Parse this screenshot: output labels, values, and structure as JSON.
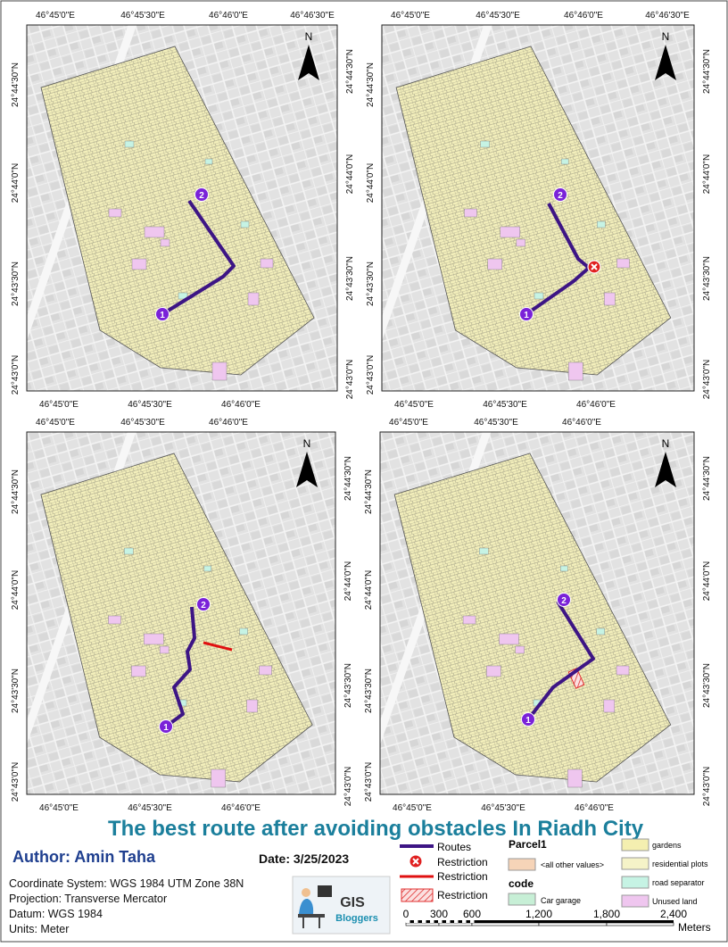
{
  "panels": [
    {
      "top": [
        "46°45'0\"E",
        "46°45'30\"E",
        "46°46'0\"E",
        "46°46'30\"E"
      ],
      "bottom": [
        "46°45'0\"E",
        "46°45'30\"E",
        "46°46'0\"E"
      ],
      "left": [
        "24°44'30\"N",
        "24°44'0\"N",
        "24°43'30\"N",
        "24°43'0\"N"
      ],
      "right": [
        "24°44'30\"N",
        "24°44'0\"N",
        "24°43'30\"N",
        "24°43'0\"N"
      ],
      "north": "N",
      "start": "1",
      "end": "2"
    },
    {
      "top": [
        "46°45'0\"E",
        "46°45'30\"E",
        "46°46'0\"E",
        "46°46'30\"E"
      ],
      "bottom": [
        "46°45'0\"E",
        "46°45'30\"E",
        "46°46'0\"E"
      ],
      "left": [
        "24°44'30\"N",
        "24°44'0\"N",
        "24°43'30\"N",
        "24°43'0\"N"
      ],
      "right": [
        "24°44'30\"N",
        "24°44'0\"N",
        "24°43'30\"N",
        "24°43'0\"N"
      ],
      "north": "N",
      "start": "1",
      "end": "2"
    },
    {
      "top": [
        "46°45'0\"E",
        "46°45'30\"E",
        "46°46'0\"E"
      ],
      "bottom": [
        "46°45'0\"E",
        "46°45'30\"E",
        "46°46'0\"E"
      ],
      "left": [
        "24°44'30\"N",
        "24°44'0\"N",
        "24°43'30\"N",
        "24°43'0\"N"
      ],
      "right": [
        "24°44'30\"N",
        "24°44'0\"N",
        "24°43'30\"N",
        "24°43'0\"N"
      ],
      "north": "N",
      "start": "1",
      "end": "2"
    },
    {
      "top": [
        "46°45'0\"E",
        "46°45'30\"E",
        "46°46'0\"E"
      ],
      "bottom": [
        "46°45'0\"E",
        "46°45'30\"E",
        "46°46'0\"E"
      ],
      "left": [
        "24°44'30\"N",
        "24°44'0\"N",
        "24°43'30\"N",
        "24°43'0\"N"
      ],
      "right": [
        "24°44'30\"N",
        "24°44'0\"N",
        "24°43'30\"N",
        "24°43'0\"N"
      ],
      "north": "N",
      "start": "1",
      "end": "2"
    }
  ],
  "title": "The best route after avoiding obstacles In Riadh City",
  "author": "Author: Amin Taha",
  "date": "Date: 3/25/2023",
  "info": [
    "Coordinate System: WGS 1984 UTM Zone 38N",
    "Projection: Transverse Mercator",
    "Datum: WGS 1984",
    "Units: Meter"
  ],
  "logo": {
    "title": "GIS",
    "subtitle": "Bloggers"
  },
  "legend": {
    "routes": "Routes",
    "restriction_point": "Restriction",
    "restriction_line": "Restriction",
    "restriction_polygon": "Restriction",
    "layer": "Parcel1",
    "other": "<all other values>",
    "field": "code",
    "classes": [
      "Car garage",
      "gardens",
      "residential plots",
      "road separator",
      "Unused land"
    ]
  },
  "scale": {
    "labels": [
      "0",
      "300",
      "600",
      "1,200",
      "1,800",
      "2,400"
    ],
    "unit": "Meters"
  }
}
